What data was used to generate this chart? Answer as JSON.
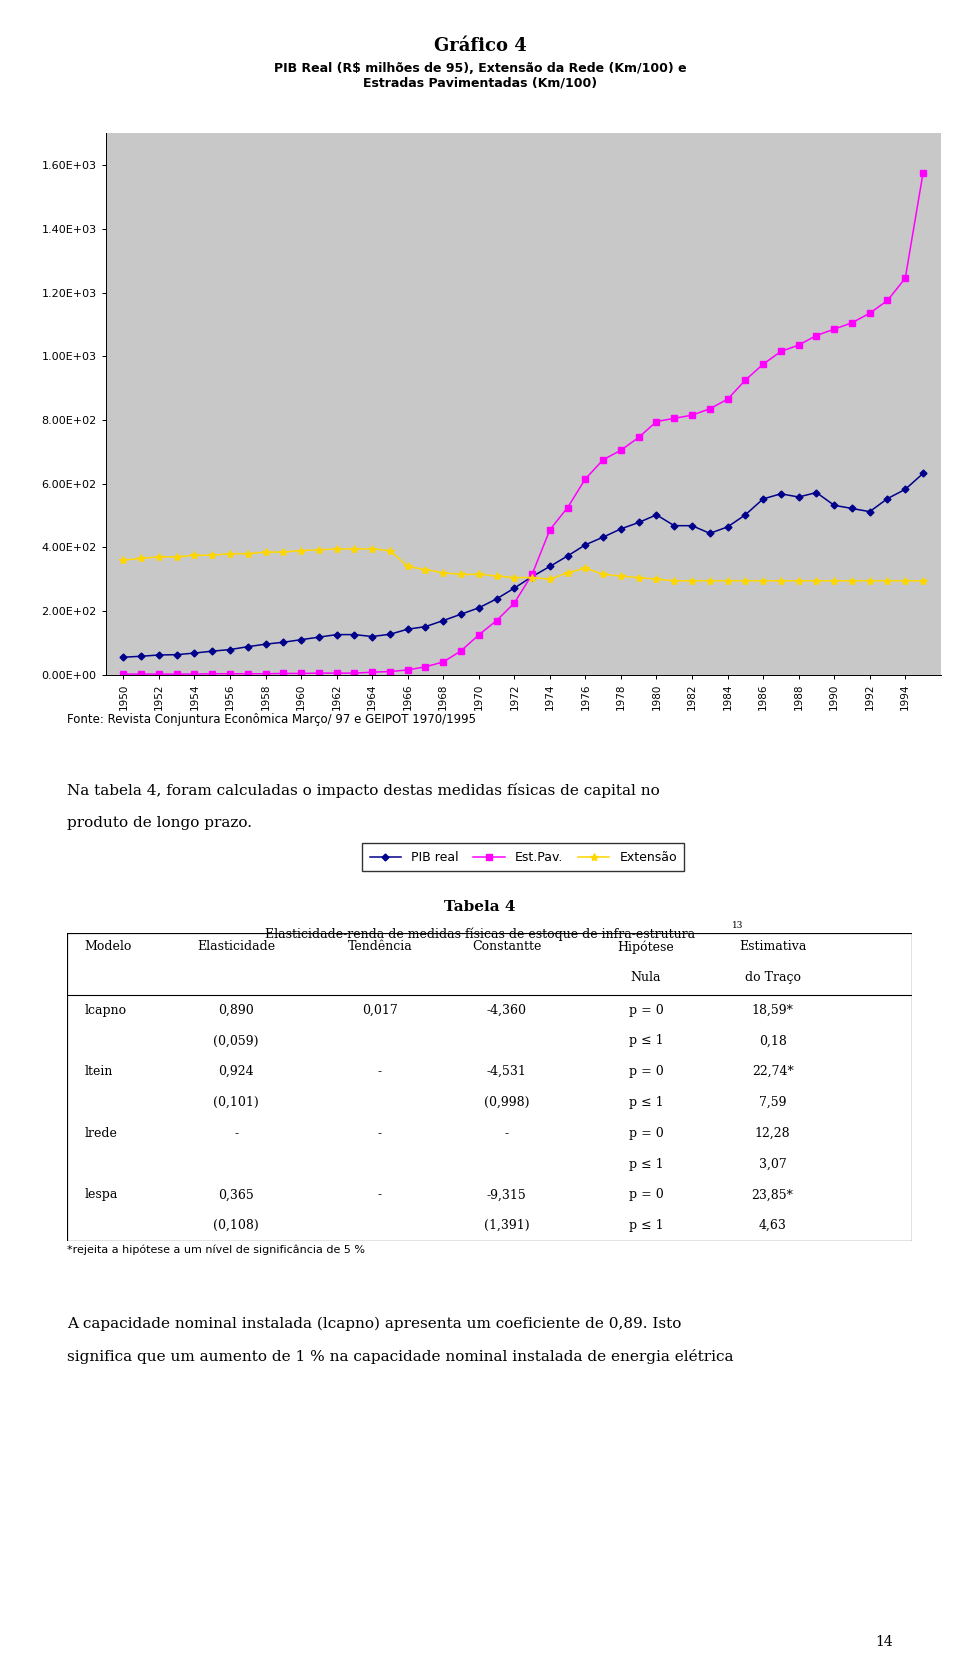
{
  "title_main": "Gráfico 4",
  "chart_title": "PIB Real (R$ milhões de 95), Extensão da Rede (Km/100) e\nEstradas Pavimentadas (Km/100)",
  "years": [
    1950,
    1951,
    1952,
    1953,
    1954,
    1955,
    1956,
    1957,
    1958,
    1959,
    1960,
    1961,
    1962,
    1963,
    1964,
    1965,
    1966,
    1967,
    1968,
    1969,
    1970,
    1971,
    1972,
    1973,
    1974,
    1975,
    1976,
    1977,
    1978,
    1979,
    1980,
    1981,
    1982,
    1983,
    1984,
    1985,
    1986,
    1987,
    1988,
    1989,
    1990,
    1991,
    1992,
    1993,
    1994,
    1995
  ],
  "pib_real": [
    55,
    58,
    62,
    63,
    68,
    74,
    79,
    88,
    96,
    102,
    110,
    118,
    126,
    126,
    120,
    127,
    143,
    151,
    170,
    190,
    210,
    238,
    272,
    308,
    340,
    373,
    408,
    432,
    458,
    478,
    502,
    468,
    468,
    444,
    464,
    502,
    552,
    568,
    558,
    572,
    532,
    522,
    512,
    553,
    582,
    632
  ],
  "est_pav": [
    2,
    2,
    2,
    2,
    2,
    3,
    3,
    3,
    3,
    4,
    4,
    5,
    5,
    5,
    8,
    10,
    15,
    25,
    40,
    75,
    125,
    170,
    225,
    315,
    455,
    525,
    615,
    675,
    705,
    745,
    795,
    805,
    815,
    835,
    865,
    925,
    975,
    1015,
    1035,
    1065,
    1085,
    1105,
    1135,
    1175,
    1245,
    1575
  ],
  "extensao": [
    360,
    365,
    370,
    370,
    375,
    375,
    380,
    380,
    385,
    385,
    390,
    392,
    395,
    395,
    395,
    390,
    340,
    330,
    320,
    315,
    315,
    310,
    305,
    305,
    300,
    320,
    335,
    315,
    310,
    305,
    300,
    295,
    295,
    295,
    295,
    295,
    295,
    295,
    295,
    295,
    295,
    295,
    295,
    295,
    295,
    295
  ],
  "pib_color": "#00008B",
  "estpav_color": "#FF00FF",
  "extensao_color": "#FFD700",
  "legend_labels": [
    "PIB real",
    "Est.Pav.",
    "Extensão"
  ],
  "ylim": [
    0,
    1700
  ],
  "yticks": [
    0,
    200,
    400,
    600,
    800,
    1000,
    1200,
    1400,
    1600
  ],
  "ytick_labels": [
    "0.00E+00",
    "2.00E+02",
    "4.00E+02",
    "6.00E+02",
    "8.00E+02",
    "1.00E+03",
    "1.20E+03",
    "1.40E+03",
    "1.60E+03"
  ],
  "bg_color": "#C8C8C8",
  "fonte_text": "Fonte: Revista Conjuntura Econômica Março/ 97 e GEIPOT 1970/1995",
  "para1_line1": "Na tabela 4, foram calculadas o impacto destas medidas físicas de capital no",
  "para1_line2": "produto de longo prazo.",
  "tabela_title": "Tabela 4",
  "tabela_subtitle": "Elasticidade-renda de medidas físicas de estoque de infra-estrutura",
  "tabela_superscript": "13",
  "table_headers": [
    "Modelo",
    "Elasticidade",
    "Tendência",
    "Constantte",
    "Hipótese",
    "Estimativa"
  ],
  "table_headers2": [
    "",
    "",
    "",
    "",
    "Nula",
    "do Traço"
  ],
  "table_rows": [
    [
      "lcapno",
      "0,890",
      "0,017",
      "-4,360",
      "p = 0",
      "18,59*"
    ],
    [
      "",
      "(0,059)",
      "",
      "",
      "p ≤ 1",
      "0,18"
    ],
    [
      "ltein",
      "0,924",
      "-",
      "-4,531",
      "p = 0",
      "22,74*"
    ],
    [
      "",
      "(0,101)",
      "",
      "(0,998)",
      "p ≤ 1",
      "7,59"
    ],
    [
      "lrede",
      "-",
      "-",
      "-",
      "p = 0",
      "12,28"
    ],
    [
      "",
      "",
      "",
      "",
      "p ≤ 1",
      "3,07"
    ],
    [
      "lespa",
      "0,365",
      "-",
      "-9,315",
      "p = 0",
      "23,85*"
    ],
    [
      "",
      "(0,108)",
      "",
      "(1,391)",
      "p ≤ 1",
      "4,63"
    ]
  ],
  "footnote": "*rejeita a hipótese a um nível de significância de 5 %",
  "para2_line1": "A capacidade nominal instalada (lcapno) apresenta um coeficiente de 0,89. Isto",
  "para2_line2": "significa que um aumento de 1 % na capacidade nominal instalada de energia elétrica",
  "page_num": "14"
}
